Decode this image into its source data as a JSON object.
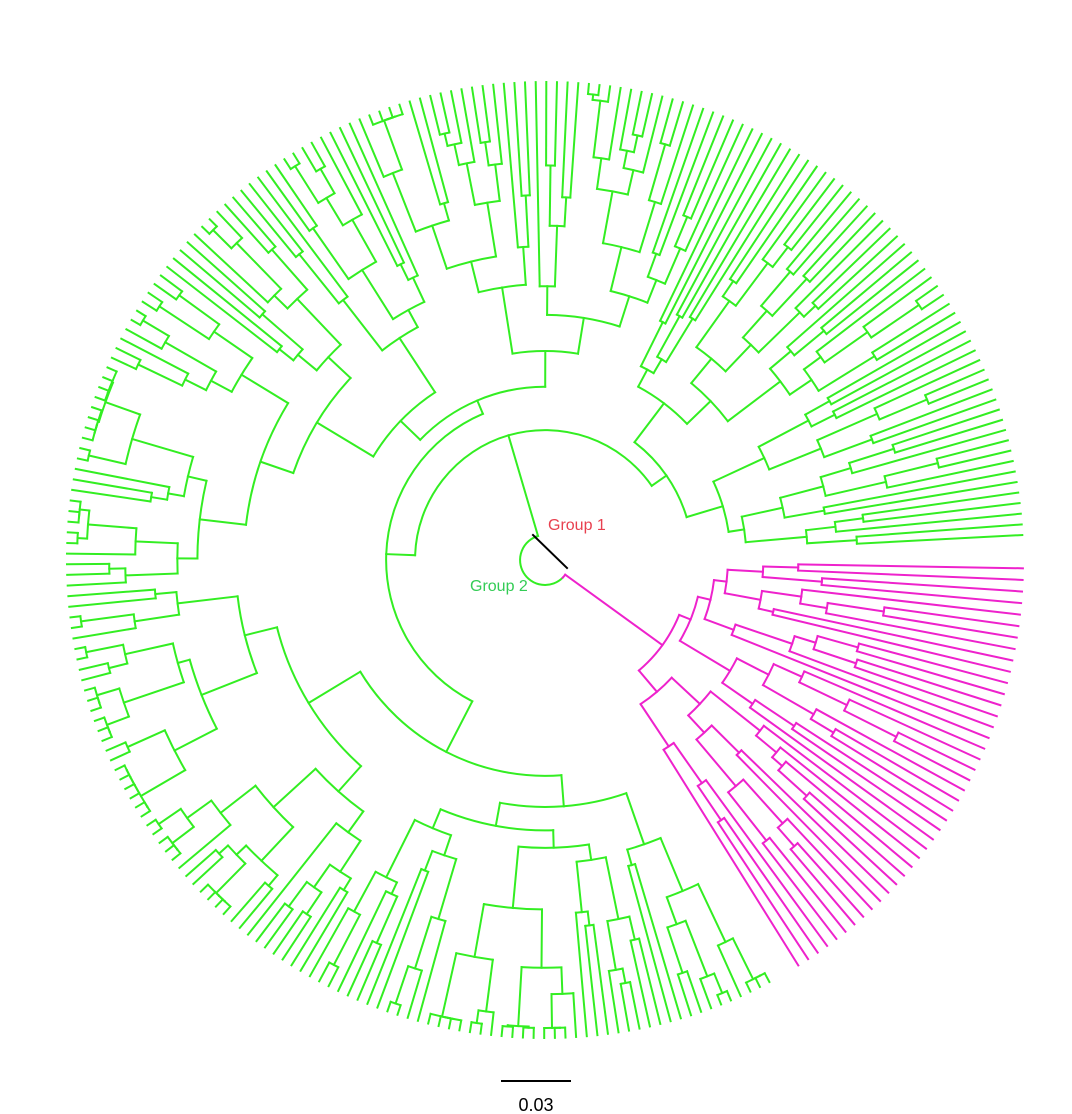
{
  "labels": {
    "group1": "Group 1",
    "group2": "Group 2"
  },
  "scale_bar": {
    "label": "0.03"
  }
}
